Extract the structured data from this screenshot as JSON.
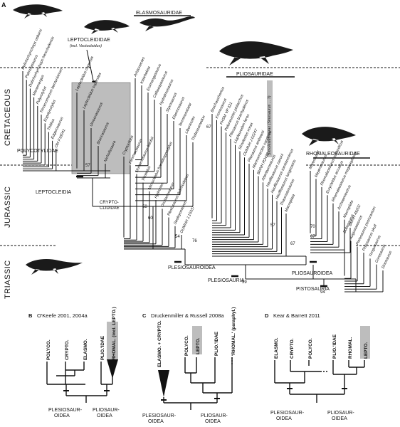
{
  "panel_a": {
    "letter": "A",
    "periods": [
      "CRETACEOUS",
      "JURASSIC",
      "TRIASSIC"
    ],
    "clades": {
      "elasmosauridae": "ELASMOSAURIDAE",
      "leptocleididae": "LEPTOCLEIDIDAE",
      "leptocleididae_note": "(incl. Vectocleidus)",
      "pliosauridae": "PLIOSAURIDAE",
      "rhomaleosauridae": "RHOMALEOSAURIDAE",
      "polycotylidae": "POLYCOTYLIDAE",
      "leptocleidia": "LEPTOCLEIDIA",
      "cryptoclididae_1": "CRYPTO-",
      "cryptoclididae_2": "CLIDIDAE",
      "plesiosauroidea": "PLESIOSAUROIDEA",
      "plesiosauria": "PLESIOSAURIA",
      "pliosauroidea": "PLIOSAUROIDEA",
      "pistosauria": "PISTOSAURIA"
    },
    "node_numbers": [
      "57",
      "58",
      "60",
      "54",
      "76",
      "67",
      "57",
      "67",
      "70",
      "67",
      "59",
      "94"
    ],
    "taxa_left": [
      "Dolichorhynchops osborni",
      "Palmulasaurus",
      "Dolichorhynchops herschelensis",
      "Manemergus",
      "Polycotylus",
      "Trinacromerum bentonianum",
      "Eopolycotylus",
      "Thililua",
      "Edgarosaurus",
      "OM F18041"
    ],
    "taxa_lepto": [
      "Leptocleidus capensis",
      "Leptocleidus superstes",
      "Umoonasaurus",
      "Brancasaurus",
      "Nichollssaura"
    ],
    "taxa_crypto": [
      "Cryptoclidus",
      "Kimmerosaurus",
      "Muraenosaurus leedsii",
      "Tricleidus",
      "Microcleidus homalospondylus",
      "Hydrorion",
      "Occitanosaurus",
      "Plesiosaurus dolichodeirus",
      "Seeleyosaurus",
      "OUMNH J.10337"
    ],
    "taxa_elasmo": [
      "Aristonectes",
      "Kaiwhekea",
      "Eromangasaurus",
      "Callawayasaurus",
      "Hydralmosaurus",
      "Styxosaurus",
      "Elasmosaurus",
      "Terminonatator",
      "Libonectes",
      "Thalassomedon"
    ],
    "taxa_plio": [
      "Brachauchenius",
      "Kronosaurus",
      "FHSM VP 321",
      "Peloneustes philarchus",
      "Pliosaurus brachydeirus",
      "Liopleurodon ferox",
      "Simolestes vorax",
      "OUMNH J.02247",
      "Pliosaurus andrewsi",
      "Marmornectes candrewi",
      "BMNH R2439",
      "Attenborosaurus",
      "Hauffiosaurus zanoni",
      "Hauffiosaurus tomistomimus",
      "Hauffiosaurus longirostris",
      "Thaumatosaurus",
      "Macroplata"
    ],
    "highlight_taxon": "Simolestes vorax (Sinosaurus ... ?)",
    "taxa_rhomal": [
      "Maresaurus",
      "Meyerasaurus",
      "Rhomaleosaurus zetlandicus",
      "Eurycleidus arcuatus",
      "Rhomaleosaurus megacephalus",
      "Archaeonectrus",
      "Macroplata",
      "BMNH 49202"
    ],
    "taxa_basal": [
      "Bobosaurus",
      "Augustasaurus",
      "Pistosaurus postcranium",
      "Pistosaurus skull",
      "Yunguisaurus",
      "Corosaurus",
      "Sinosaurus"
    ]
  },
  "panel_b": {
    "letter": "B",
    "title": "O'Keefe 2001, 2004a",
    "taxa": [
      "POLYCO.",
      "CRYPTO.",
      "ELASMO.",
      "PLIO.'IDAE",
      "RHOMAL. (incl. LEPTO.)"
    ],
    "bottom_left": [
      "PLESIOSAUR-",
      "OIDEA"
    ],
    "bottom_right": [
      "PLIOSAUR-",
      "OIDEA"
    ]
  },
  "panel_c": {
    "letter": "C",
    "title": "Druckenmiller & Russell 2008a",
    "taxa": [
      "ELASMO. + CRYPTO.",
      "POLYCO.",
      "LEPTO.",
      "PLIO.'IDAE",
      "'RHOMAL.' (paraphyl.)"
    ],
    "bottom_left": [
      "PLESIOSAUR-",
      "OIDEA"
    ],
    "bottom_right": [
      "PLIOSAUR-",
      "OIDEA"
    ]
  },
  "panel_d": {
    "letter": "D",
    "title": "Kear & Barrett 2011",
    "taxa": [
      "ELASMO.",
      "CRYPTO.",
      "POLYCO.",
      "PLIO.'IDAE",
      "RHOMAL.",
      "LEPTO."
    ],
    "bottom_left": [
      "PLESIOSAUR-",
      "OIDEA"
    ],
    "bottom_right": [
      "PLIOSAUR-",
      "OIDEA"
    ]
  },
  "colors": {
    "line": "#111111",
    "highlight": "#bdbdbd",
    "silhouette": "#1a1a1a"
  }
}
